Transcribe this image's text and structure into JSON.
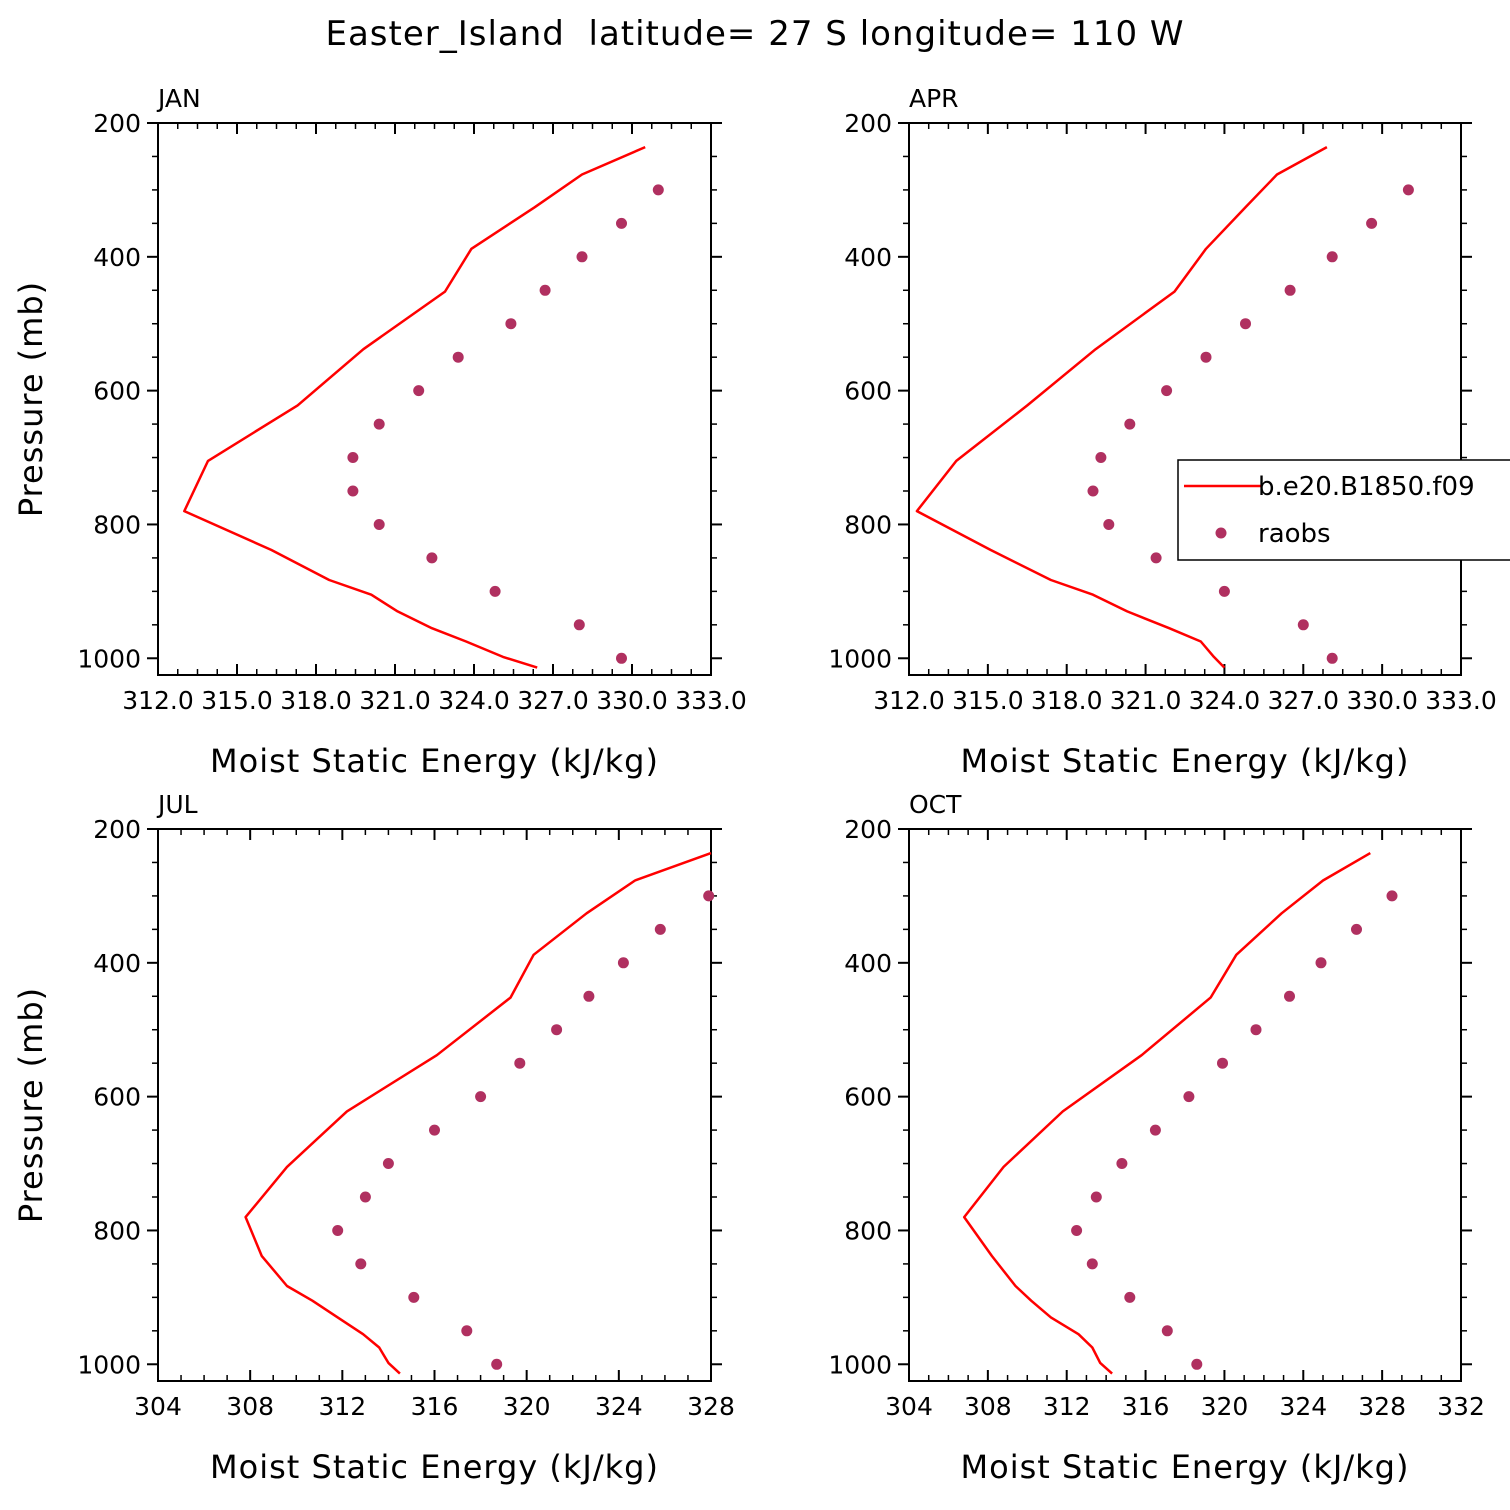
{
  "title": "Easter_Island  latitude= 27 S longitude= 110 W",
  "legend": {
    "entries": [
      {
        "label": "b.e20.B1850.f09",
        "style": "line"
      },
      {
        "label": "raobs",
        "style": "marker"
      }
    ]
  },
  "colors": {
    "model_line": "#ff0000",
    "raobs_marker": "#b03060",
    "axes": "#000000"
  },
  "chart_data": [
    {
      "type": "line",
      "panel_label": "JAN",
      "xlabel": "Moist Static Energy (kJ/kg)",
      "ylabel": "Pressure (mb)",
      "xlim": [
        312,
        333
      ],
      "ylim": [
        1025,
        200
      ],
      "y_inverted": true,
      "x_ticks": [
        312,
        315,
        318,
        321,
        324,
        327,
        330,
        333
      ],
      "x_tick_labels": [
        "312.0",
        "315.0",
        "318.0",
        "321.0",
        "324.0",
        "327.0",
        "330.0",
        "333.0"
      ],
      "y_ticks": [
        200,
        400,
        600,
        800,
        1000
      ],
      "y_tick_labels": [
        "200",
        "400",
        "600",
        "800",
        "1000"
      ],
      "series": [
        {
          "name": "b.e20.B1850.f09",
          "style": "line",
          "x": [
            330.5,
            328.1,
            326.3,
            323.9,
            322.9,
            319.8,
            317.3,
            313.9,
            313.0,
            316.3,
            318.5,
            320.1,
            321.1,
            322.4,
            323.7,
            325.1,
            326.4
          ],
          "y": [
            236,
            277,
            326,
            388,
            452,
            538,
            622,
            705,
            780,
            838,
            883,
            905,
            930,
            955,
            975,
            998,
            1014
          ]
        },
        {
          "name": "raobs",
          "style": "marker",
          "x": [
            331.0,
            329.6,
            328.1,
            326.7,
            325.4,
            323.4,
            321.9,
            320.4,
            319.4,
            319.4,
            320.4,
            322.4,
            324.8,
            328.0,
            329.6
          ],
          "y": [
            300,
            350,
            400,
            450,
            500,
            550,
            600,
            650,
            700,
            750,
            800,
            850,
            900,
            950,
            1000
          ]
        }
      ]
    },
    {
      "type": "line",
      "panel_label": "APR",
      "xlabel": "Moist Static Energy (kJ/kg)",
      "ylabel": "",
      "xlim": [
        312,
        333
      ],
      "ylim": [
        1025,
        200
      ],
      "y_inverted": true,
      "x_ticks": [
        312,
        315,
        318,
        321,
        324,
        327,
        330,
        333
      ],
      "x_tick_labels": [
        "312.0",
        "315.0",
        "318.0",
        "321.0",
        "324.0",
        "327.0",
        "330.0",
        "333.0"
      ],
      "y_ticks": [
        200,
        400,
        600,
        800,
        1000
      ],
      "y_tick_labels": [
        "200",
        "400",
        "600",
        "800",
        "1000"
      ],
      "series": [
        {
          "name": "b.e20.B1850.f09",
          "style": "line",
          "x": [
            327.9,
            326.0,
            324.8,
            323.3,
            322.1,
            319.1,
            316.5,
            313.8,
            312.3,
            315.1,
            317.4,
            319.0,
            320.3,
            321.9,
            323.1,
            323.6,
            324.0
          ],
          "y": [
            236,
            277,
            326,
            388,
            452,
            538,
            622,
            705,
            780,
            838,
            883,
            905,
            930,
            955,
            975,
            998,
            1014
          ]
        },
        {
          "name": "raobs",
          "style": "marker",
          "x": [
            331.0,
            329.6,
            328.1,
            326.5,
            324.8,
            323.3,
            321.8,
            320.4,
            319.3,
            319.0,
            319.6,
            321.4,
            324.0,
            327.0,
            328.1
          ],
          "y": [
            300,
            350,
            400,
            450,
            500,
            550,
            600,
            650,
            700,
            750,
            800,
            850,
            900,
            950,
            1000
          ]
        }
      ]
    },
    {
      "type": "line",
      "panel_label": "JUL",
      "xlabel": "Moist Static Energy (kJ/kg)",
      "ylabel": "Pressure (mb)",
      "xlim": [
        304,
        328
      ],
      "ylim": [
        1025,
        200
      ],
      "y_inverted": true,
      "x_ticks": [
        304,
        308,
        312,
        316,
        320,
        324,
        328
      ],
      "x_tick_labels": [
        "304",
        "308",
        "312",
        "316",
        "320",
        "324",
        "328"
      ],
      "y_ticks": [
        200,
        400,
        600,
        800,
        1000
      ],
      "y_tick_labels": [
        "200",
        "400",
        "600",
        "800",
        "1000"
      ],
      "series": [
        {
          "name": "b.e20.B1850.f09",
          "style": "line",
          "x": [
            328.0,
            324.7,
            322.6,
            320.3,
            319.3,
            316.1,
            312.2,
            309.6,
            307.8,
            308.5,
            309.6,
            310.7,
            311.8,
            312.9,
            313.6,
            314.0,
            314.5
          ],
          "y": [
            236,
            277,
            326,
            388,
            452,
            538,
            622,
            705,
            780,
            838,
            883,
            905,
            930,
            955,
            975,
            998,
            1014
          ]
        },
        {
          "name": "raobs",
          "style": "marker",
          "x": [
            327.9,
            325.8,
            324.2,
            322.7,
            321.3,
            319.7,
            318.0,
            316.0,
            314.0,
            313.0,
            311.8,
            312.8,
            315.1,
            317.4,
            318.7
          ],
          "y": [
            300,
            350,
            400,
            450,
            500,
            550,
            600,
            650,
            700,
            750,
            800,
            850,
            900,
            950,
            1000
          ]
        }
      ]
    },
    {
      "type": "line",
      "panel_label": "OCT",
      "xlabel": "Moist Static Energy (kJ/kg)",
      "ylabel": "",
      "xlim": [
        304,
        332
      ],
      "ylim": [
        1025,
        200
      ],
      "y_inverted": true,
      "x_ticks": [
        304,
        308,
        312,
        316,
        320,
        324,
        328,
        332
      ],
      "x_tick_labels": [
        "304",
        "308",
        "312",
        "316",
        "320",
        "324",
        "328",
        "332"
      ],
      "y_ticks": [
        200,
        400,
        600,
        800,
        1000
      ],
      "y_tick_labels": [
        "200",
        "400",
        "600",
        "800",
        "1000"
      ],
      "series": [
        {
          "name": "b.e20.B1850.f09",
          "style": "line",
          "x": [
            327.4,
            325.0,
            322.9,
            320.6,
            319.3,
            315.8,
            311.8,
            308.8,
            306.8,
            308.2,
            309.4,
            310.2,
            311.2,
            312.6,
            313.3,
            313.7,
            314.3
          ],
          "y": [
            236,
            277,
            326,
            388,
            452,
            538,
            622,
            705,
            780,
            838,
            883,
            905,
            930,
            955,
            975,
            998,
            1014
          ]
        },
        {
          "name": "raobs",
          "style": "marker",
          "x": [
            328.5,
            326.7,
            324.9,
            323.3,
            321.6,
            319.9,
            318.2,
            316.5,
            314.8,
            313.5,
            312.5,
            313.3,
            315.2,
            317.1,
            318.6
          ],
          "y": [
            300,
            350,
            400,
            450,
            500,
            550,
            600,
            650,
            700,
            750,
            800,
            850,
            900,
            950,
            1000
          ]
        }
      ]
    }
  ]
}
